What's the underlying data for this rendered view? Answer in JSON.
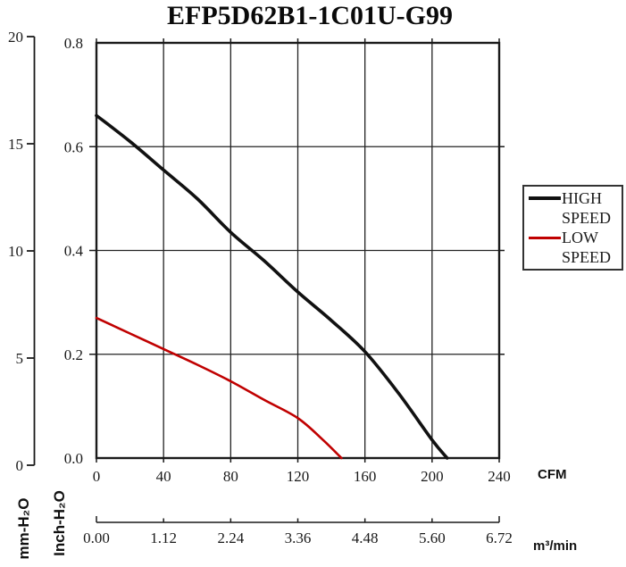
{
  "title": "EFP5D62B1-1C01U-G99",
  "legend": {
    "entries": [
      {
        "name": "high-speed",
        "line1": "HIGH",
        "line2": "SPEED",
        "color": "#111111"
      },
      {
        "name": "low-speed",
        "line1": "LOW",
        "line2": "SPEED",
        "color": "#c00000"
      }
    ]
  },
  "axes": {
    "inch": {
      "unit": "Inch-H₂O",
      "ticks": [
        "0.8",
        "0.6",
        "0.4",
        "0.2",
        "0.0"
      ]
    },
    "mm": {
      "unit": "mm-H₂O",
      "ticks": [
        "20",
        "15",
        "10",
        "5",
        "0"
      ]
    },
    "cfm": {
      "unit": "CFM",
      "ticks": [
        "0",
        "40",
        "80",
        "120",
        "160",
        "200",
        "240"
      ]
    },
    "m3min": {
      "unit": "m³/min",
      "ticks": [
        "0.00",
        "1.12",
        "2.24",
        "3.36",
        "4.48",
        "5.60",
        "6.72"
      ]
    }
  },
  "chart_data": {
    "type": "line",
    "title": "EFP5D62B1-1C01U-G99",
    "grid": true,
    "legend_position": "right",
    "x_axis": {
      "label": "CFM",
      "range": [
        0,
        240
      ],
      "tick_step": 40
    },
    "x_axis_secondary": {
      "label": "m³/min",
      "range": [
        0,
        6.72
      ],
      "ticks": [
        0.0,
        1.12,
        2.24,
        3.36,
        4.48,
        5.6,
        6.72
      ]
    },
    "y_axis": {
      "label": "Inch-H₂O",
      "range": [
        0,
        0.8
      ],
      "tick_step": 0.2
    },
    "y_axis_secondary": {
      "label": "mm-H₂O",
      "range": [
        0,
        20
      ],
      "tick_step": 5
    },
    "series": [
      {
        "name": "HIGH SPEED",
        "color": "#111111",
        "points_cfm_inch": [
          [
            0,
            0.66
          ],
          [
            20,
            0.61
          ],
          [
            40,
            0.555
          ],
          [
            60,
            0.5
          ],
          [
            80,
            0.435
          ],
          [
            100,
            0.38
          ],
          [
            120,
            0.32
          ],
          [
            140,
            0.265
          ],
          [
            160,
            0.205
          ],
          [
            180,
            0.125
          ],
          [
            200,
            0.035
          ],
          [
            209,
            0
          ]
        ]
      },
      {
        "name": "LOW SPEED",
        "color": "#c00000",
        "points_cfm_inch": [
          [
            0,
            0.27
          ],
          [
            20,
            0.24
          ],
          [
            40,
            0.21
          ],
          [
            60,
            0.18
          ],
          [
            80,
            0.148
          ],
          [
            100,
            0.112
          ],
          [
            120,
            0.077
          ],
          [
            135,
            0.035
          ],
          [
            146,
            0
          ]
        ]
      }
    ]
  }
}
